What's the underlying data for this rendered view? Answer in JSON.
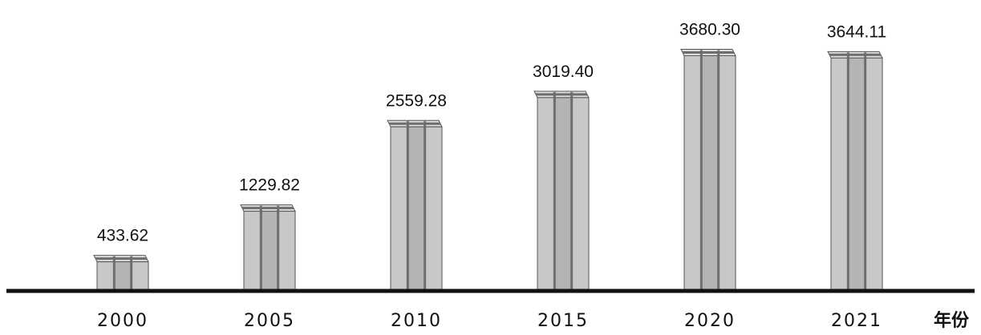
{
  "chart_data": {
    "type": "bar",
    "style": "3d-column",
    "categories": [
      "2000",
      "2005",
      "2010",
      "2015",
      "2020",
      "2021"
    ],
    "values": [
      433.62,
      1229.82,
      2559.28,
      3019.4,
      3680.3,
      3644.11
    ],
    "value_labels": [
      "433.62",
      "1229.82",
      "2559.28",
      "3019.40",
      "3680.30",
      "3644.11"
    ],
    "x_unit_label": "年份",
    "title": "",
    "ylim": [
      0,
      3800
    ],
    "grid": false,
    "legend": "none"
  },
  "colors": {
    "bar_front": "#c8c8c8",
    "bar_side": "#b4b4b4",
    "bar_top": "#dcdcdc",
    "bar_stripe": "#6e6e6e",
    "baseline": "#111111"
  }
}
